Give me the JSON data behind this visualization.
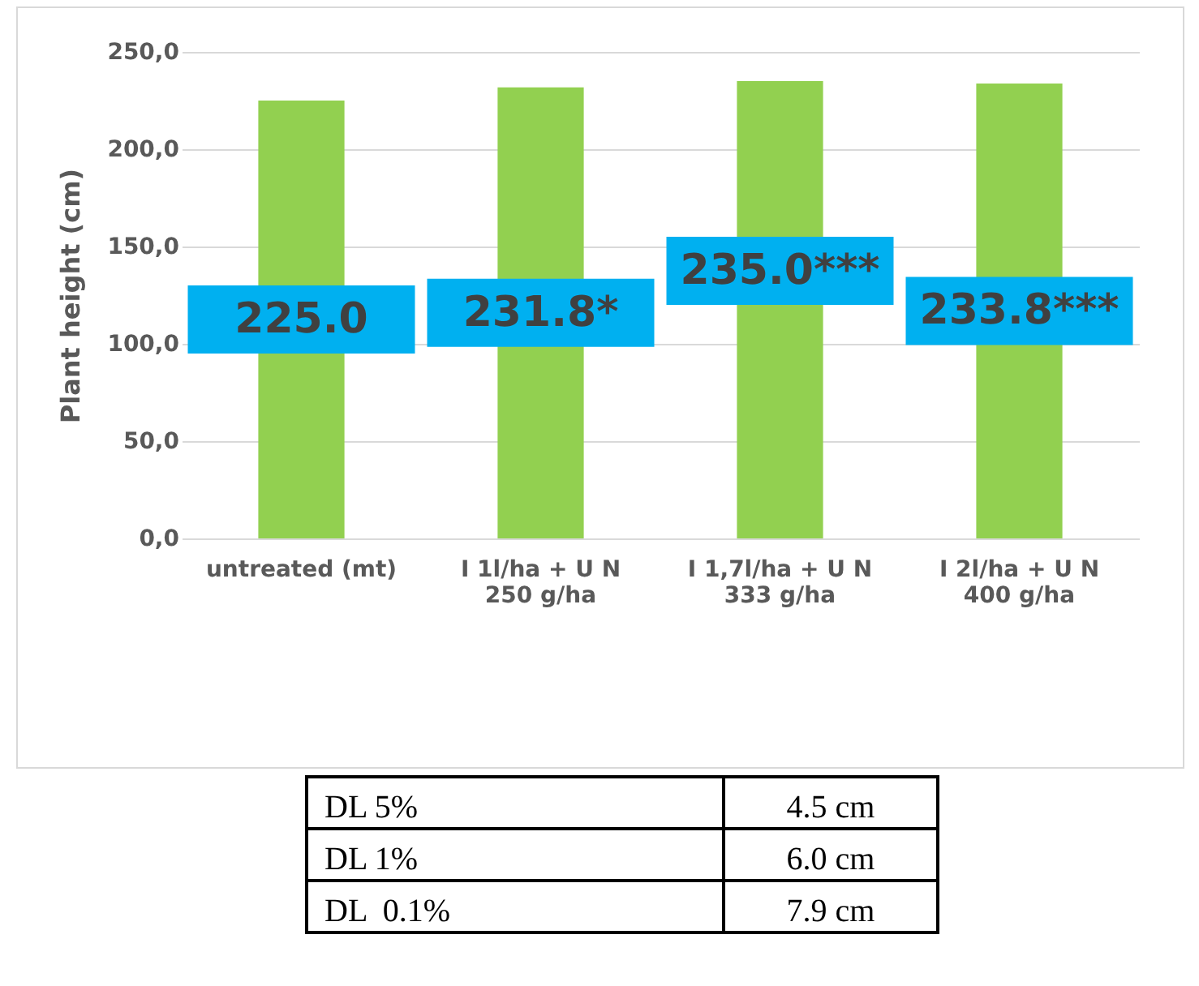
{
  "chart_data": {
    "type": "bar",
    "ylabel": "Plant height (cm)",
    "categories": [
      "untreated (mt)",
      "I 1l/ha + U N\n250 g/ha",
      "I 1,7l/ha + U N\n333 g/ha",
      "I 2l/ha + U N\n400 g/ha"
    ],
    "values": [
      225.0,
      231.8,
      235.0,
      233.8
    ],
    "value_labels": [
      "225.0",
      "231.8*",
      "235.0***",
      "233.8***"
    ],
    "color": "#92d050",
    "ylim": [
      0,
      250
    ],
    "yticks": [
      {
        "value": 0,
        "label": "0,0"
      },
      {
        "value": 50,
        "label": "50,0"
      },
      {
        "value": 100,
        "label": "100,0"
      },
      {
        "value": 150,
        "label": "150,0"
      },
      {
        "value": 200,
        "label": "200,0"
      },
      {
        "value": 250,
        "label": "250,0"
      }
    ],
    "grid": "y",
    "annotations": [
      "DL 5%",
      "4.5 cm",
      "DL 1%",
      "6.0 cm",
      "DL  0.1%",
      "7.9 cm"
    ]
  }
}
